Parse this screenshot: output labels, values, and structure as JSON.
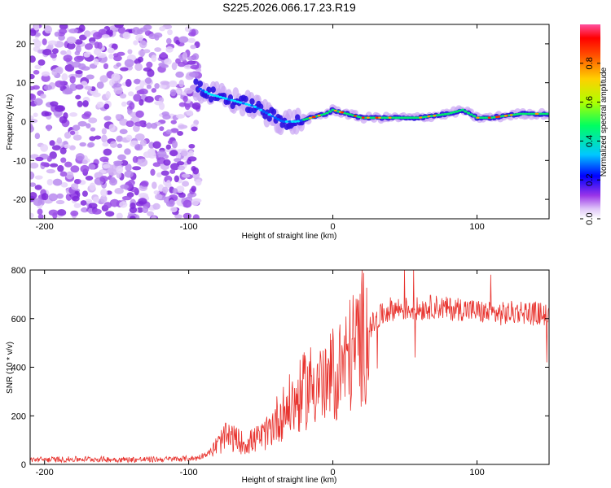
{
  "title": "S225.2026.066.17.23.R19",
  "chart_data": [
    {
      "type": "heatmap",
      "xlabel": "Height of straight line (km)",
      "ylabel": "Frequency (Hz)",
      "xlim": [
        -210,
        150
      ],
      "ylim": [
        -25,
        25
      ],
      "xticks": [
        -200,
        -100,
        0,
        100
      ],
      "yticks": [
        -20,
        -10,
        0,
        10,
        20
      ],
      "colorbar": {
        "label": "Normalized spectral amplitude",
        "range": [
          0,
          1
        ],
        "ticks": [
          "0.0",
          "0.2",
          "0.4",
          "0.6",
          "0.8"
        ]
      },
      "regions": [
        {
          "name": "noise",
          "x_range": [
            -210,
            -93
          ],
          "freq_range": [
            -25,
            25
          ],
          "amplitude": 0.1
        },
        {
          "name": "ridge",
          "points": [
            [
              -95,
              9
            ],
            [
              -85,
              7
            ],
            [
              -75,
              6
            ],
            [
              -65,
              5
            ],
            [
              -55,
              4
            ],
            [
              -45,
              2
            ],
            [
              -35,
              0
            ],
            [
              -25,
              0
            ],
            [
              -15,
              1
            ],
            [
              -5,
              2
            ],
            [
              0,
              3
            ],
            [
              10,
              2
            ],
            [
              20,
              1
            ],
            [
              40,
              1
            ],
            [
              60,
              1
            ],
            [
              80,
              2
            ],
            [
              90,
              3
            ],
            [
              100,
              1
            ],
            [
              110,
              1
            ],
            [
              130,
              2
            ],
            [
              150,
              2
            ]
          ]
        }
      ]
    },
    {
      "type": "line",
      "xlabel": "Height of straight line (km)",
      "ylabel": "SNR (10 * v/v)",
      "xlim": [
        -210,
        150
      ],
      "ylim": [
        0,
        800
      ],
      "xticks": [
        -200,
        -100,
        0,
        100
      ],
      "yticks": [
        0,
        200,
        400,
        600,
        800
      ],
      "color": "#e8342f",
      "series": [
        {
          "name": "SNR",
          "x": [
            -210,
            -190,
            -170,
            -150,
            -130,
            -110,
            -95,
            -85,
            -80,
            -75,
            -70,
            -65,
            -60,
            -55,
            -50,
            -45,
            -40,
            -35,
            -30,
            -25,
            -20,
            -15,
            -10,
            -5,
            0,
            5,
            10,
            15,
            20,
            25,
            30,
            35,
            40,
            50,
            60,
            70,
            80,
            90,
            100,
            110,
            120,
            130,
            140,
            150
          ],
          "y": [
            20,
            20,
            22,
            20,
            20,
            22,
            25,
            50,
            80,
            110,
            110,
            95,
            85,
            100,
            110,
            130,
            180,
            210,
            240,
            260,
            300,
            330,
            350,
            310,
            370,
            400,
            430,
            480,
            520,
            560,
            590,
            620,
            640,
            640,
            640,
            650,
            640,
            640,
            630,
            620,
            620,
            630,
            620,
            620
          ]
        }
      ]
    }
  ]
}
